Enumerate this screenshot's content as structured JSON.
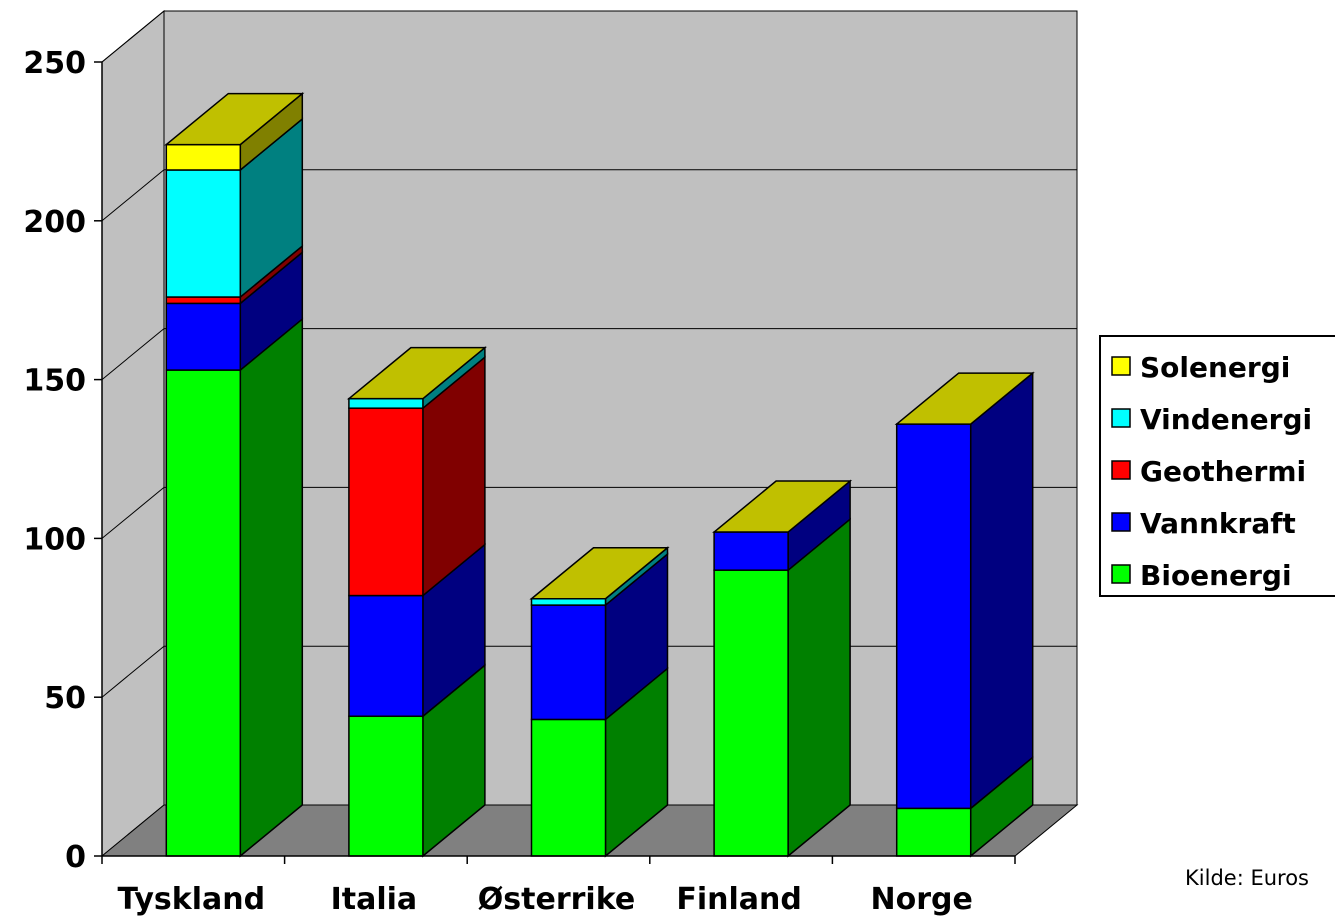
{
  "chart_data": {
    "type": "bar",
    "stacked": true,
    "three_d": true,
    "categories": [
      "Tyskland",
      "Italia",
      "Østerrike",
      "Finland",
      "Norge"
    ],
    "series": [
      {
        "name": "Bioenergi",
        "color": "#00ff00",
        "side_color": "#008000",
        "values": [
          153,
          44,
          43,
          90,
          15
        ]
      },
      {
        "name": "Vannkraft",
        "color": "#0000ff",
        "side_color": "#000080",
        "values": [
          21,
          38,
          36,
          12,
          121
        ]
      },
      {
        "name": "Geothermi",
        "color": "#ff0000",
        "side_color": "#800000",
        "values": [
          2,
          59,
          0,
          0,
          0
        ]
      },
      {
        "name": "Vindenergi",
        "color": "#00ffff",
        "side_color": "#008080",
        "values": [
          40,
          3,
          2,
          0,
          0
        ]
      },
      {
        "name": "Solenergi",
        "color": "#ffff00",
        "side_color": "#808000",
        "values": [
          8,
          0,
          0,
          0,
          0
        ]
      }
    ],
    "top_color": "#c0c000",
    "ylim": [
      0,
      250
    ],
    "yticks": [
      0,
      50,
      100,
      150,
      200,
      250
    ],
    "grid": true,
    "wall_color": "#c0c0c0",
    "floor_color": "#808080",
    "legend": "right",
    "legend_order": [
      "Solenergi",
      "Vindenergi",
      "Geothermi",
      "Vannkraft",
      "Bioenergi"
    ],
    "title": "",
    "xlabel": "",
    "ylabel": ""
  },
  "source": "Kilde: Euros"
}
